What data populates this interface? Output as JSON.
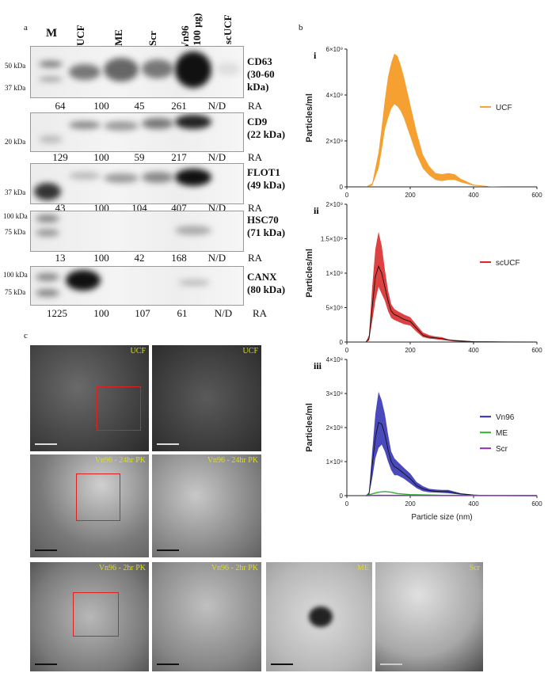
{
  "panel_labels": {
    "a": "a",
    "b": "b",
    "c": "c"
  },
  "lanes": [
    "M",
    "UCF",
    "ME",
    "Scr",
    "Vn96\n(100 µg)",
    "scUCF"
  ],
  "blots": [
    {
      "protein": "CD63\n(30-60\nkDa)",
      "kda": [
        "50 kDa",
        "37 kDa"
      ],
      "ra": [
        "64",
        "100",
        "45",
        "261",
        "N/D",
        "RA"
      ]
    },
    {
      "protein": "CD9\n(22 kDa)",
      "kda": [
        "20 kDa"
      ],
      "ra": [
        "129",
        "100",
        "59",
        "217",
        "N/D",
        "RA"
      ]
    },
    {
      "protein": "FLOT1\n(49 kDa)",
      "kda": [
        "37 kDa"
      ],
      "ra": [
        "43",
        "100",
        "104",
        "407",
        "N/D",
        "RA"
      ]
    },
    {
      "protein": "HSC70\n(71 kDa)",
      "kda": [
        "100 kDa",
        "75 kDa"
      ],
      "ra": [
        "13",
        "100",
        "42",
        "168",
        "N/D",
        "RA"
      ]
    },
    {
      "protein": "CANX\n(80 kDa)",
      "kda": [
        "100 kDa",
        "75 kDa"
      ],
      "ra": [
        "1225",
        "100",
        "107",
        "61",
        "N/D",
        "RA"
      ]
    }
  ],
  "em_labels": [
    "UCF",
    "UCF",
    "Vn96 - 24hr PK",
    "Vn96 - 24hr PK",
    "Vn96 - 2hr PK",
    "Vn96 - 2hr PK",
    "ME",
    "Scr"
  ],
  "chart_data": [
    {
      "type": "area",
      "panel": "i",
      "xlim": [
        0,
        600
      ],
      "ylim": [
        0,
        6000000000
      ],
      "xticks": [
        "0",
        "200",
        "400",
        "600"
      ],
      "yticks": [
        "0",
        "2×10⁹",
        "4×10⁹",
        "6×10⁹"
      ],
      "ylabel": "Particles/ml",
      "xlabel": "",
      "legend": [
        "UCF"
      ],
      "legend_position": "right",
      "colors": {
        "UCF": "#f5a030"
      },
      "series": [
        {
          "name": "UCF",
          "x": [
            60,
            80,
            100,
            110,
            120,
            130,
            140,
            150,
            160,
            170,
            180,
            200,
            220,
            240,
            260,
            280,
            300,
            320,
            340,
            360,
            400,
            450,
            500,
            600
          ],
          "lower": [
            0,
            0.05,
            0.8,
            1.6,
            2.5,
            3.0,
            3.4,
            3.6,
            3.5,
            3.3,
            3.0,
            2.2,
            1.4,
            0.8,
            0.5,
            0.3,
            0.25,
            0.3,
            0.3,
            0.2,
            0.05,
            0.01,
            0,
            0
          ],
          "upper": [
            0,
            0.15,
            1.5,
            2.6,
            3.8,
            4.8,
            5.4,
            5.8,
            5.7,
            5.3,
            4.8,
            3.6,
            2.4,
            1.4,
            0.9,
            0.6,
            0.55,
            0.6,
            0.55,
            0.35,
            0.1,
            0.02,
            0,
            0
          ],
          "unit": "1e9"
        }
      ]
    },
    {
      "type": "line",
      "panel": "ii",
      "xlim": [
        0,
        600
      ],
      "ylim": [
        0,
        2000000000
      ],
      "xticks": [
        "0",
        "200",
        "400",
        "600"
      ],
      "yticks": [
        "0",
        "5×10⁸",
        "1×10⁹",
        "1.5×10⁹",
        "2×10⁹"
      ],
      "ylabel": "Particles/ml",
      "xlabel": "",
      "legend": [
        "scUCF"
      ],
      "legend_position": "right",
      "colors": {
        "scUCF": "#d82020"
      },
      "series": [
        {
          "name": "scUCF",
          "x": [
            60,
            70,
            80,
            90,
            100,
            110,
            120,
            130,
            140,
            150,
            160,
            180,
            200,
            220,
            240,
            260,
            280,
            300,
            320,
            340,
            400,
            600
          ],
          "mean": [
            0,
            0.05,
            0.5,
            0.95,
            1.1,
            1.0,
            0.8,
            0.6,
            0.45,
            0.4,
            0.38,
            0.33,
            0.3,
            0.2,
            0.1,
            0.07,
            0.06,
            0.05,
            0.03,
            0.02,
            0.005,
            0
          ],
          "upper": [
            0,
            0.1,
            0.8,
            1.35,
            1.6,
            1.4,
            1.05,
            0.75,
            0.55,
            0.48,
            0.45,
            0.4,
            0.36,
            0.25,
            0.14,
            0.1,
            0.08,
            0.07,
            0.04,
            0.03,
            0.01,
            0
          ],
          "lower": [
            0,
            0.02,
            0.3,
            0.6,
            0.8,
            0.7,
            0.6,
            0.45,
            0.35,
            0.32,
            0.3,
            0.26,
            0.24,
            0.15,
            0.07,
            0.05,
            0.04,
            0.03,
            0.02,
            0.01,
            0,
            0
          ],
          "unit": "1e9"
        }
      ]
    },
    {
      "type": "line",
      "panel": "iii",
      "xlim": [
        0,
        600
      ],
      "ylim": [
        0,
        400000000
      ],
      "xticks": [
        "0",
        "200",
        "400",
        "600"
      ],
      "yticks": [
        "0",
        "1×10⁸",
        "2×10⁸",
        "3×10⁸",
        "4×10⁸"
      ],
      "ylabel": "Particles/ml",
      "xlabel": "Particle size (nm)",
      "legend": [
        "Vn96",
        "ME",
        "Scr"
      ],
      "legend_position": "right",
      "colors": {
        "Vn96": "#2a2ab0",
        "ME": "#30b030",
        "Scr": "#8030b0"
      },
      "series": [
        {
          "name": "Vn96",
          "x": [
            60,
            70,
            80,
            90,
            100,
            110,
            120,
            130,
            140,
            150,
            160,
            180,
            200,
            220,
            240,
            260,
            280,
            300,
            320,
            340,
            360,
            400,
            450,
            600
          ],
          "mean": [
            0,
            0.05,
            0.9,
            1.7,
            2.15,
            2.1,
            1.8,
            1.35,
            1.0,
            0.85,
            0.8,
            0.65,
            0.5,
            0.3,
            0.2,
            0.15,
            0.13,
            0.12,
            0.12,
            0.08,
            0.05,
            0.02,
            0.005,
            0
          ],
          "upper": [
            0,
            0.1,
            1.3,
            2.4,
            3.05,
            2.8,
            2.4,
            1.8,
            1.3,
            1.1,
            1.0,
            0.82,
            0.65,
            0.4,
            0.28,
            0.2,
            0.18,
            0.17,
            0.17,
            0.12,
            0.07,
            0.03,
            0.01,
            0
          ],
          "lower": [
            0,
            0.02,
            0.5,
            1.1,
            1.4,
            1.5,
            1.3,
            1.0,
            0.75,
            0.6,
            0.6,
            0.5,
            0.36,
            0.22,
            0.13,
            0.1,
            0.09,
            0.08,
            0.07,
            0.05,
            0.03,
            0.01,
            0,
            0
          ],
          "unit": "1e8"
        },
        {
          "name": "ME",
          "x": [
            60,
            80,
            100,
            120,
            140,
            160,
            200,
            300,
            600
          ],
          "mean": [
            0,
            0.05,
            0.1,
            0.12,
            0.1,
            0.06,
            0.03,
            0.01,
            0
          ],
          "unit": "1e8"
        },
        {
          "name": "Scr",
          "x": [
            60,
            100,
            200,
            600
          ],
          "mean": [
            0,
            0.01,
            0.005,
            0
          ],
          "unit": "1e8"
        }
      ]
    }
  ]
}
